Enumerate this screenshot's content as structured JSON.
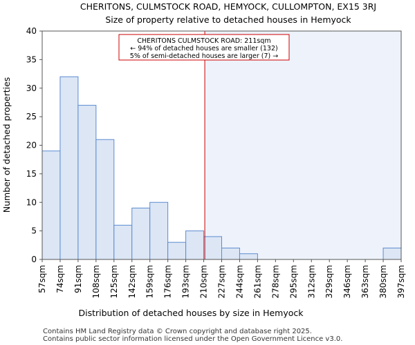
{
  "chart_data": {
    "type": "bar",
    "title": "CHERITONS, CULMSTOCK ROAD, HEMYOCK, CULLOMPTON, EX15 3RJ",
    "subtitle": "Size of property relative to detached houses in Hemyock",
    "xlabel": "Distribution of detached houses by size in Hemyock",
    "ylabel": "Number of detached properties",
    "x_tick_labels": [
      "57sqm",
      "74sqm",
      "91sqm",
      "108sqm",
      "125sqm",
      "142sqm",
      "159sqm",
      "176sqm",
      "193sqm",
      "210sqm",
      "227sqm",
      "244sqm",
      "261sqm",
      "278sqm",
      "295sqm",
      "312sqm",
      "329sqm",
      "346sqm",
      "363sqm",
      "380sqm",
      "397sqm"
    ],
    "bin_edges": [
      57,
      74,
      91,
      108,
      125,
      142,
      159,
      176,
      193,
      210,
      227,
      244,
      261,
      278,
      295,
      312,
      329,
      346,
      363,
      380,
      397
    ],
    "values": [
      19,
      32,
      27,
      21,
      6,
      9,
      10,
      3,
      5,
      4,
      2,
      1,
      0,
      0,
      0,
      0,
      0,
      0,
      0,
      2
    ],
    "ylim": [
      0,
      40
    ],
    "y_ticks": [
      0,
      5,
      10,
      15,
      20,
      25,
      30,
      35,
      40
    ],
    "grid": false,
    "property_value": 211,
    "bar_color": "#dce6f5",
    "bar_edge_color": "#5b8bd0",
    "highlight_region_color": "#eef2fb",
    "marker_color": "#cc0000",
    "annotation": {
      "line1": "CHERITONS CULMSTOCK ROAD: 211sqm",
      "line2": "← 94% of detached houses are smaller (132)",
      "line3": "5% of semi-detached houses are larger (7) →"
    }
  },
  "footer": {
    "line1": "Contains HM Land Registry data © Crown copyright and database right 2025.",
    "line2": "Contains public sector information licensed under the Open Government Licence v3.0."
  }
}
